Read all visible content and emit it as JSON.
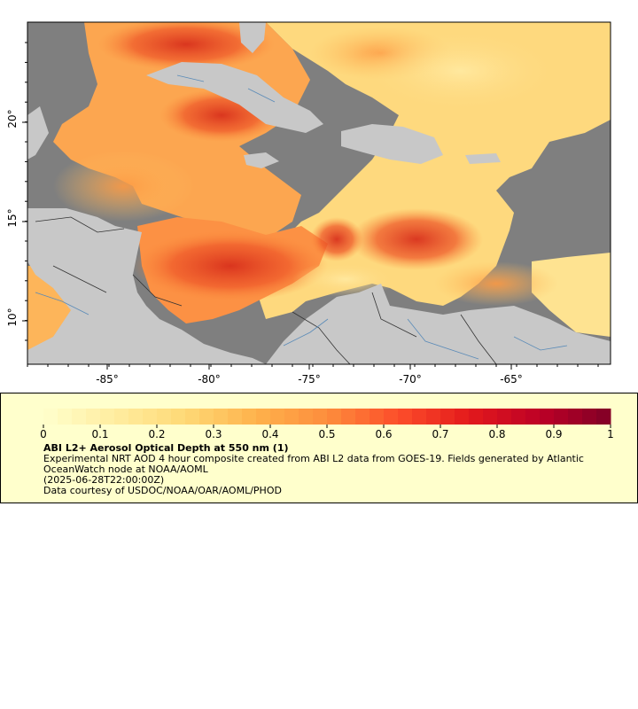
{
  "map": {
    "lon_ticks": [
      "-85°",
      "-80°",
      "-75°",
      "-70°",
      "-65°"
    ],
    "lat_ticks": [
      "20°",
      "15°",
      "10°"
    ],
    "colors": {
      "ocean_nodata": "#7f7f7f",
      "land": "#c8c8c8",
      "low_aod": "#ffe9a0",
      "high_aod": "#e8401c"
    }
  },
  "colorbar": {
    "labels": [
      "0",
      "0.1",
      "0.2",
      "0.3",
      "0.4",
      "0.5",
      "0.6",
      "0.7",
      "0.8",
      "0.9",
      "1"
    ],
    "min": 0,
    "max": 1,
    "start_color": "#ffffcc",
    "end_color": "#800026"
  },
  "legend": {
    "title": "ABI L2+ Aerosol Optical Depth at 550 nm (1)",
    "description": "Experimental NRT AOD 4 hour composite created from ABI L2 data from GOES-19. Fields generated by Atlantic OceanWatch node at NOAA/AOML",
    "timestamp": "(2025-06-28T22:00:00Z)",
    "credit": "Data courtesy of USDOC/NOAA/OAR/AOML/PHOD"
  }
}
